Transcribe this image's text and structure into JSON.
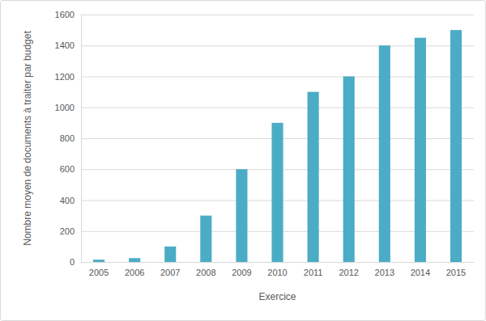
{
  "chart_data": {
    "type": "bar",
    "x_label": "Exercice",
    "y_label": "Nombre moyen de documents à traiter par budget",
    "categories": [
      "2005",
      "2006",
      "2007",
      "2008",
      "2009",
      "2010",
      "2011",
      "2012",
      "2013",
      "2014",
      "2015"
    ],
    "values": [
      15,
      25,
      100,
      300,
      600,
      900,
      1100,
      1200,
      1400,
      1450,
      1500
    ],
    "color": "#4bacc6",
    "ylim": [
      0,
      1600
    ],
    "yticks": [
      0,
      200,
      400,
      600,
      800,
      1000,
      1200,
      1400,
      1600
    ],
    "grid": true
  }
}
